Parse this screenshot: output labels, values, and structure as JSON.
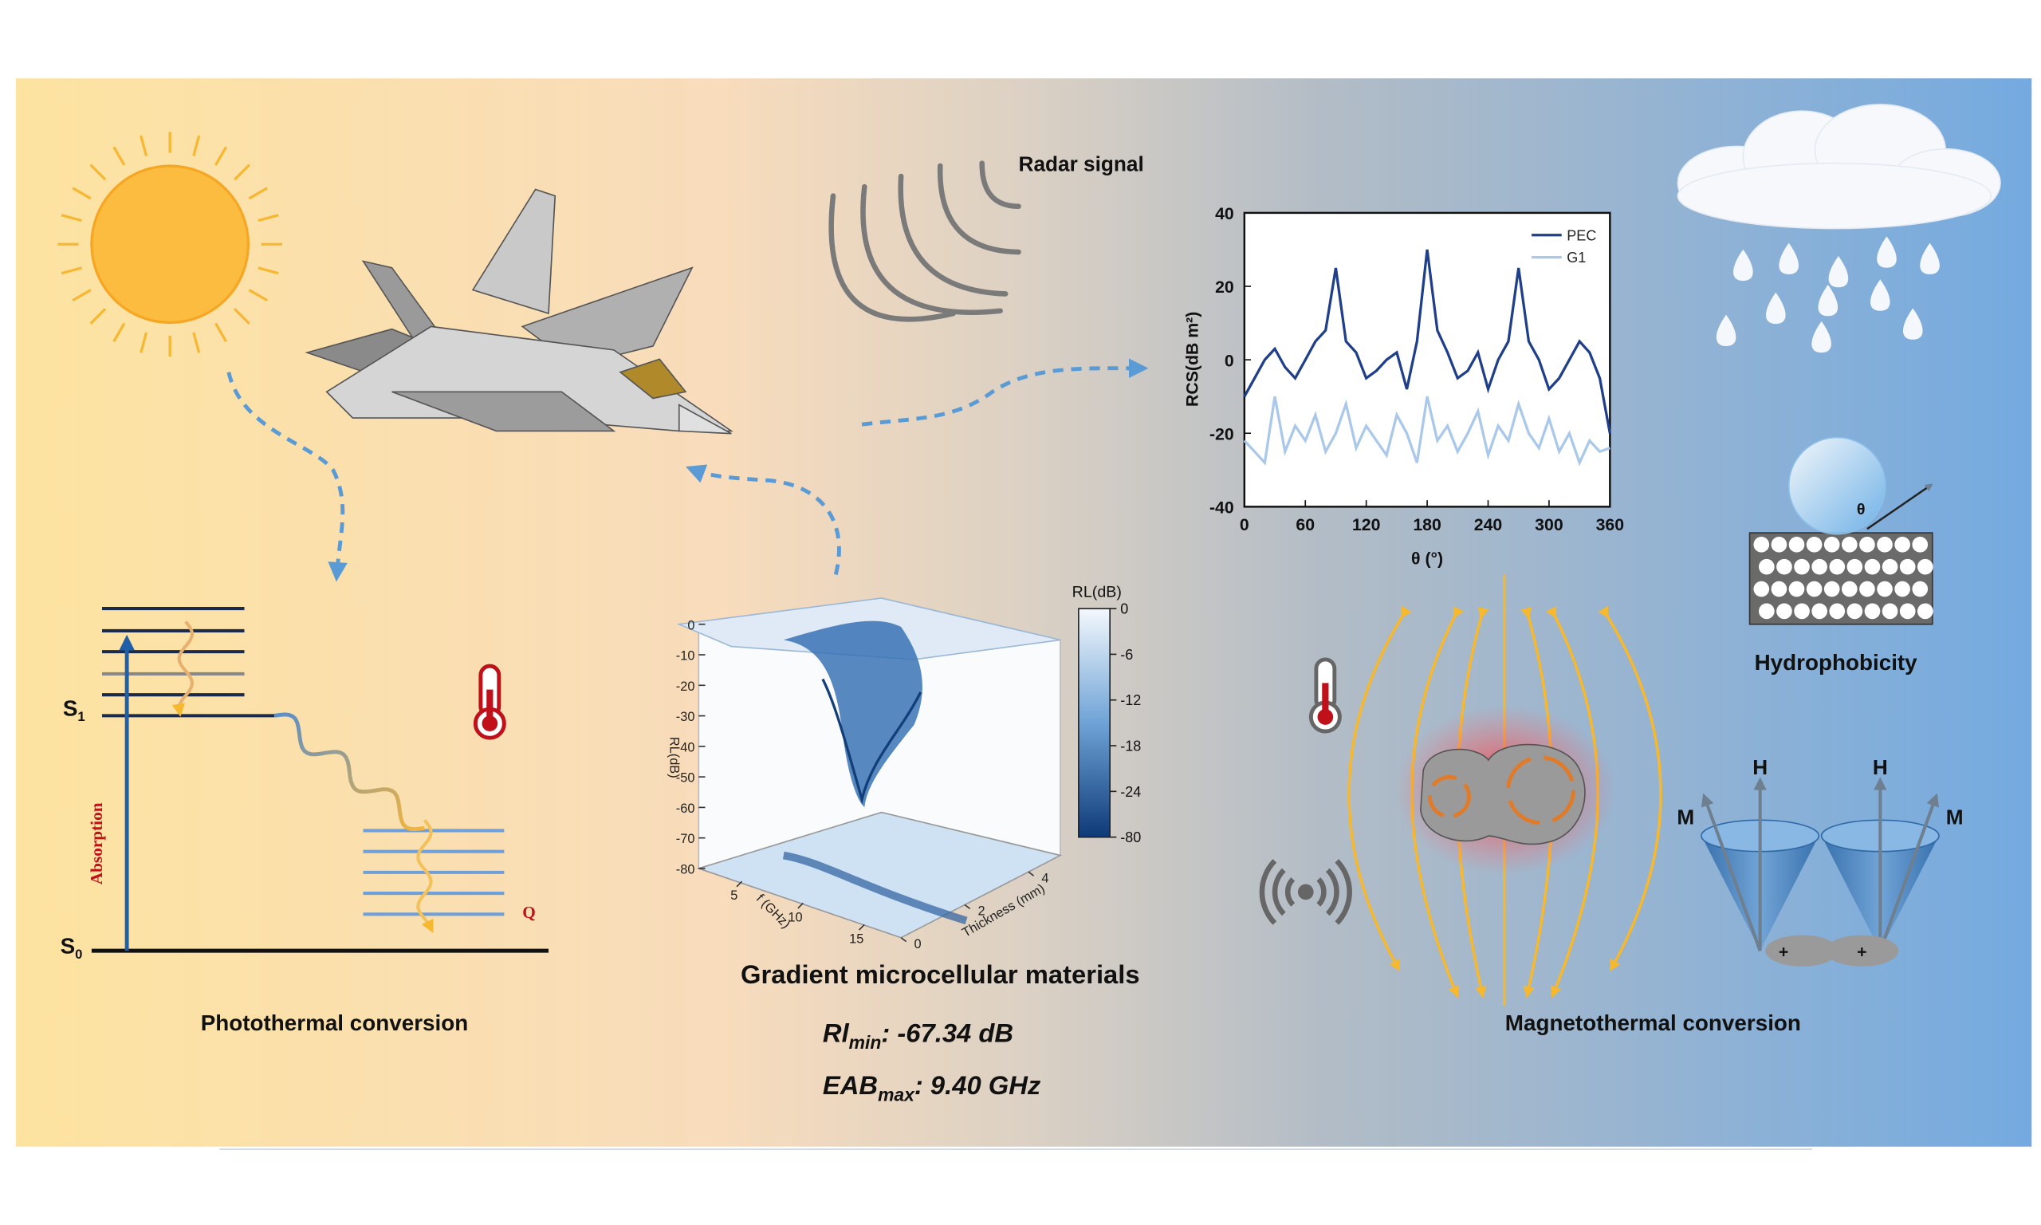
{
  "labels": {
    "radar_signal": "Radar signal",
    "photothermal_conversion": "Photothermal conversion",
    "magnetothermal_conversion": "Magnetothermal conversion",
    "hydrophobicity": "Hydrophobicity",
    "gradient_materials": "Gradient microcellular materials",
    "absorption": "Absorption",
    "q": "Q",
    "theta": "θ"
  },
  "energy_levels": {
    "s1": {
      "base": "S",
      "sub": "1"
    },
    "s0": {
      "base": "S",
      "sub": "0"
    }
  },
  "metrics": [
    {
      "base": "Rl",
      "sub": "min",
      "value": ":  -67.34 dB"
    },
    {
      "base": "EAB",
      "sub": "max",
      "value": ": 9.40 GHz"
    }
  ],
  "spins": {
    "h_left": "H",
    "h_right": "H",
    "m_left": "M",
    "m_right": "M",
    "plus_left": "+",
    "plus_right": "+"
  },
  "rcs_chart": {
    "type": "line",
    "x_label": "θ (°)",
    "y_label": "RCS(dB m²)",
    "x": [
      0,
      10,
      20,
      30,
      40,
      50,
      60,
      70,
      80,
      90,
      100,
      110,
      120,
      130,
      140,
      150,
      160,
      170,
      180,
      190,
      200,
      210,
      220,
      230,
      240,
      250,
      260,
      270,
      280,
      290,
      300,
      310,
      320,
      330,
      340,
      350,
      360
    ],
    "series": [
      {
        "name": "PEC",
        "color": "#1f3f8a",
        "values": [
          -10,
          -5,
          0,
          3,
          -2,
          -5,
          0,
          5,
          8,
          25,
          5,
          2,
          -5,
          -3,
          0,
          2,
          -8,
          5,
          30,
          8,
          2,
          -5,
          -3,
          2,
          -8,
          0,
          5,
          25,
          5,
          0,
          -8,
          -5,
          0,
          5,
          2,
          -5,
          -20
        ]
      },
      {
        "name": "G1",
        "color": "#a9c8ea",
        "values": [
          -22,
          -25,
          -28,
          -10,
          -25,
          -18,
          -22,
          -15,
          -25,
          -20,
          -12,
          -24,
          -18,
          -22,
          -26,
          -15,
          -20,
          -28,
          -10,
          -22,
          -18,
          -25,
          -20,
          -14,
          -26,
          -18,
          -22,
          -12,
          -20,
          -24,
          -16,
          -25,
          -20,
          -28,
          -22,
          -25,
          -24
        ]
      }
    ],
    "xlim": [
      0,
      360
    ],
    "xticks": [
      0,
      60,
      120,
      180,
      240,
      300,
      360
    ],
    "ylim": [
      -40,
      40
    ],
    "yticks": [
      -40,
      -20,
      0,
      20,
      40
    ]
  },
  "rl_plot": {
    "z_label": "RL(dB)",
    "x_label": "f (GHz)",
    "y_label": "Thickness (mm)",
    "zlim": [
      0,
      -80
    ],
    "zticks": [
      0,
      -10,
      -20,
      -30,
      -40,
      -50,
      -60,
      -70,
      -80
    ],
    "xlim": [
      2,
      18
    ],
    "xticks": [
      5,
      10,
      15
    ],
    "ylim": [
      0,
      5
    ],
    "yticks": [
      0,
      2,
      4
    ],
    "colorbar": {
      "label": "RL(dB)",
      "ticks": [
        0,
        -6,
        -12,
        -18,
        -24,
        -80
      ]
    }
  }
}
